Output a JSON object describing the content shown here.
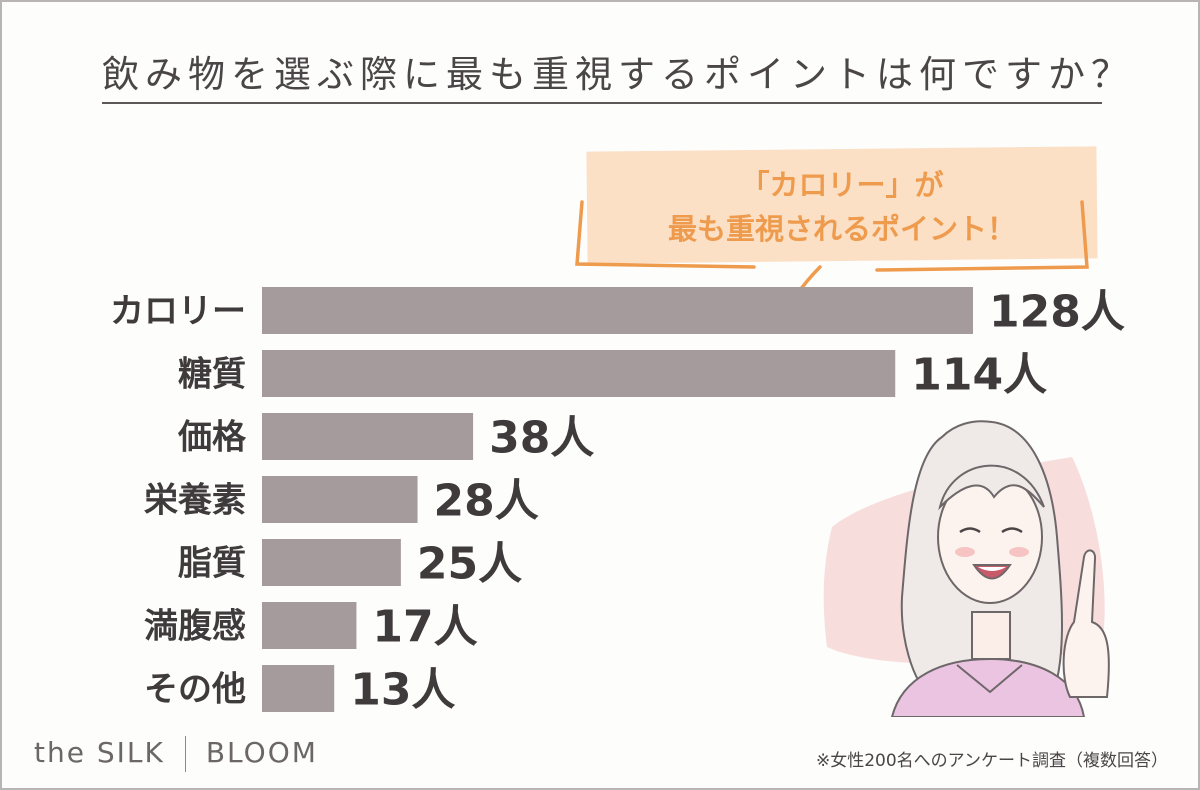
{
  "header": {
    "title": "飲み物を選ぶ際に最も重視するポイントは何ですか？"
  },
  "callout": {
    "line1": "「カロリー」が",
    "line2": "最も重視されるポイント！",
    "color": "#ee9b4e",
    "background": "#fbe0c6"
  },
  "chart_data": {
    "type": "bar",
    "orientation": "horizontal",
    "categories": [
      "カロリー",
      "糖質",
      "価格",
      "栄養素",
      "脂質",
      "満腹感",
      "その他"
    ],
    "values": [
      128,
      114,
      38,
      28,
      25,
      17,
      13
    ],
    "value_labels": [
      "128人",
      "114人",
      "38人",
      "28人",
      "25人",
      "17人",
      "13人"
    ],
    "unit": "人",
    "xlim": [
      0,
      128
    ],
    "grid": false,
    "legend": "none",
    "bar_color": "#a59a9c"
  },
  "footer": {
    "brand_left": "the SILK",
    "brand_right": "BLOOM",
    "note": "※女性200名へのアンケート調査（複数回答）"
  },
  "illustration": {
    "icon": "smiling-woman-pointing-up-icon"
  }
}
